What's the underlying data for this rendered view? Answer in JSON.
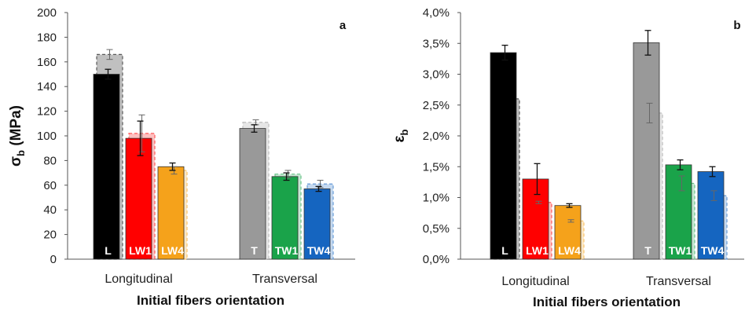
{
  "chart_data": [
    {
      "type": "bar",
      "panel_label": "a",
      "ylabel": "σb (MPa)",
      "ylabel_main": "σ",
      "ylabel_sub": "b",
      "ylabel_rest": " (MPa)",
      "xlabel": "Initial fibers orientation",
      "ylim": [
        0,
        200
      ],
      "y_ticks": [
        "0",
        "20",
        "40",
        "60",
        "80",
        "100",
        "120",
        "140",
        "160",
        "180",
        "200"
      ],
      "categories": [
        "Longitudinal",
        "Transversal"
      ],
      "series": [
        {
          "name": "L",
          "category": "Longitudinal",
          "value": 150,
          "error": 4,
          "dashed_value": 166,
          "dashed_error": 4,
          "color": "#000000"
        },
        {
          "name": "LW1",
          "category": "Longitudinal",
          "value": 98,
          "error": 14,
          "dashed_value": 102,
          "dashed_error": 15,
          "color": "#ff0000"
        },
        {
          "name": "LW4",
          "category": "Longitudinal",
          "value": 75,
          "error": 3,
          "dashed_value": 72,
          "dashed_error": 3,
          "color": "#f5a21b"
        },
        {
          "name": "T",
          "category": "Transversal",
          "value": 106,
          "error": 3,
          "dashed_value": 111,
          "dashed_error": 2,
          "color": "#999999"
        },
        {
          "name": "TW1",
          "category": "Transversal",
          "value": 67,
          "error": 3,
          "dashed_value": 69,
          "dashed_error": 3,
          "color": "#1aa34a"
        },
        {
          "name": "TW4",
          "category": "Transversal",
          "value": 57,
          "error": 2,
          "dashed_value": 61,
          "dashed_error": 3,
          "color": "#1565c0"
        }
      ]
    },
    {
      "type": "bar",
      "panel_label": "b",
      "ylabel": "εb",
      "ylabel_main": "ε",
      "ylabel_sub": "b",
      "ylabel_rest": "",
      "xlabel": "Initial fibers orientation",
      "ylim": [
        0,
        4
      ],
      "y_ticks": [
        "0,0%",
        "0,5%",
        "1,0%",
        "1,5%",
        "2,0%",
        "2,5%",
        "3,0%",
        "3,5%",
        "4,0%"
      ],
      "categories": [
        "Longitudinal",
        "Transversal"
      ],
      "series": [
        {
          "name": "L",
          "category": "Longitudinal",
          "value": 3.35,
          "error": 0.12,
          "dashed_value": 2.6,
          "dashed_error": 0,
          "color": "#000000"
        },
        {
          "name": "LW1",
          "category": "Longitudinal",
          "value": 1.3,
          "error": 0.25,
          "dashed_value": 0.92,
          "dashed_error": 0.02,
          "color": "#ff0000"
        },
        {
          "name": "LW4",
          "category": "Longitudinal",
          "value": 0.87,
          "error": 0.03,
          "dashed_value": 0.62,
          "dashed_error": 0.02,
          "color": "#f5a21b"
        },
        {
          "name": "T",
          "category": "Transversal",
          "value": 3.51,
          "error": 0.2,
          "dashed_value": 2.37,
          "dashed_error": 0.16,
          "color": "#999999"
        },
        {
          "name": "TW1",
          "category": "Transversal",
          "value": 1.53,
          "error": 0.08,
          "dashed_value": 1.23,
          "dashed_error": 0.12,
          "color": "#1aa34a"
        },
        {
          "name": "TW4",
          "category": "Transversal",
          "value": 1.42,
          "error": 0.08,
          "dashed_value": 1.03,
          "dashed_error": 0.08,
          "color": "#1565c0"
        }
      ]
    }
  ]
}
